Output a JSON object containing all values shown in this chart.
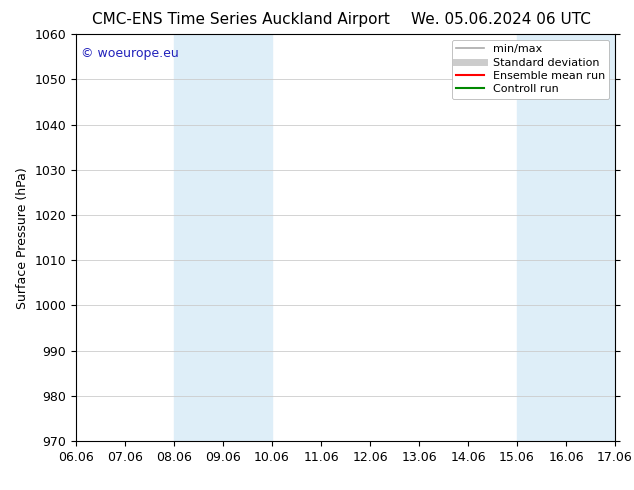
{
  "title_left": "CMC-ENS Time Series Auckland Airport",
  "title_right": "We. 05.06.2024 06 UTC",
  "ylabel": "Surface Pressure (hPa)",
  "ylim": [
    970,
    1060
  ],
  "yticks": [
    970,
    980,
    990,
    1000,
    1010,
    1020,
    1030,
    1040,
    1050,
    1060
  ],
  "xtick_labels": [
    "06.06",
    "07.06",
    "08.06",
    "09.06",
    "10.06",
    "11.06",
    "12.06",
    "13.06",
    "14.06",
    "15.06",
    "16.06",
    "17.06"
  ],
  "shaded_regions": [
    {
      "xstart": 2,
      "xend": 4,
      "color": "#deeef8"
    },
    {
      "xstart": 9,
      "xend": 11,
      "color": "#deeef8"
    }
  ],
  "watermark": "© woeurope.eu",
  "watermark_color": "#2222bb",
  "background_color": "#ffffff",
  "legend_items": [
    {
      "label": "min/max",
      "color": "#aaaaaa",
      "lw": 1.2,
      "style": "-"
    },
    {
      "label": "Standard deviation",
      "color": "#cccccc",
      "lw": 5,
      "style": "-"
    },
    {
      "label": "Ensemble mean run",
      "color": "#ff0000",
      "lw": 1.5,
      "style": "-"
    },
    {
      "label": "Controll run",
      "color": "#008800",
      "lw": 1.5,
      "style": "-"
    }
  ],
  "grid_color": "#cccccc",
  "grid_style": "-",
  "title_fontsize": 11,
  "ylabel_fontsize": 9,
  "tick_fontsize": 9,
  "legend_fontsize": 8,
  "watermark_fontsize": 9
}
